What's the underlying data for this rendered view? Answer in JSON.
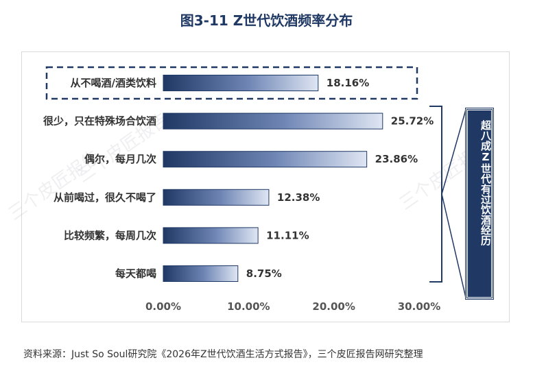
{
  "title": "图3-11 Z世代饮酒频率分布",
  "source": "资料来源：Just So Soul研究院《2026年Z世代饮酒生活方式报告》，三个皮匠报告网研究整理",
  "watermark": "三个皮匠报告",
  "side_label": "超八成Z世代有过饮酒经历",
  "colors": {
    "bar_dark": "#1f3864",
    "bar_light": "#d9e2f3",
    "title": "#1f3864"
  },
  "chart_data": {
    "type": "bar",
    "orientation": "horizontal",
    "categories": [
      "从不喝酒/酒类饮料",
      "很少，只在特殊场合饮酒",
      "偶尔，每月几次",
      "从前喝过，很久不喝了",
      "比较频繁，每周几次",
      "每天都喝"
    ],
    "values": [
      18.16,
      25.72,
      23.86,
      12.38,
      11.11,
      8.75
    ],
    "value_labels": [
      "18.16%",
      "25.72%",
      "23.86%",
      "12.38%",
      "11.11%",
      "8.75%"
    ],
    "xlim": [
      0,
      30
    ],
    "xticks": [
      0,
      10,
      20,
      30
    ],
    "xtick_labels": [
      "0.00%",
      "10.00%",
      "20.00%",
      "30.00%"
    ],
    "title": "图3-11 Z世代饮酒频率分布",
    "xlabel": "",
    "ylabel": "",
    "grid": false,
    "highlighted_category": "从不喝酒/酒类饮料"
  }
}
